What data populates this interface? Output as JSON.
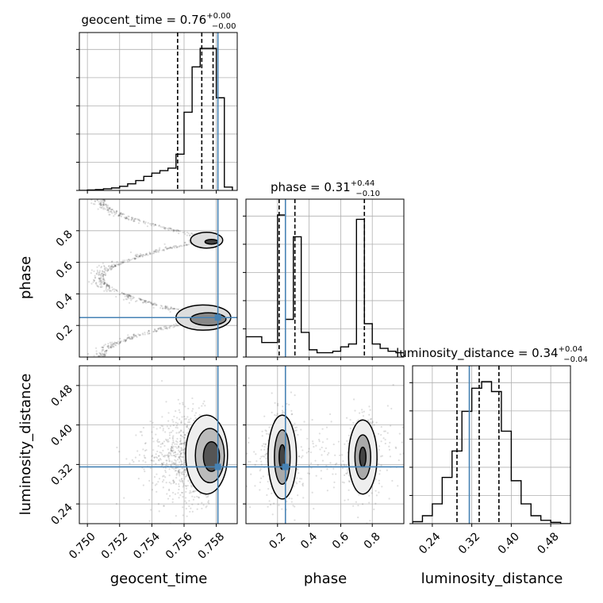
{
  "chart_data": {
    "type": "corner",
    "params": [
      "geocent_time",
      "phase",
      "luminosity_distance"
    ],
    "axis_labels": [
      "geocent_time",
      "phase",
      "luminosity_distance"
    ],
    "titles": [
      {
        "param": "geocent_time",
        "value": "0.76",
        "plus": "+0.00",
        "minus": "−0.00"
      },
      {
        "param": "phase",
        "value": "0.31",
        "plus": "+0.44",
        "minus": "−0.10"
      },
      {
        "param": "luminosity_distance",
        "value": "0.34",
        "plus": "+0.04",
        "minus": "−0.04"
      }
    ],
    "ranges": {
      "geocent_time": [
        0.7495,
        0.7593
      ],
      "phase": [
        0.0,
        1.0
      ],
      "luminosity_distance": [
        0.2,
        0.52
      ]
    },
    "ticks": {
      "geocent_time": [
        "0.750",
        "0.752",
        "0.754",
        "0.756",
        "0.758"
      ],
      "phase": [
        "0.2",
        "0.4",
        "0.6",
        "0.8"
      ],
      "luminosity_distance": [
        "0.24",
        "0.32",
        "0.40",
        "0.48"
      ]
    },
    "truths": {
      "geocent_time": 0.7581,
      "phase": 0.25,
      "luminosity_distance": 0.315
    },
    "quantiles": {
      "geocent_time": [
        0.7556,
        0.7571,
        0.7578
      ],
      "phase": [
        0.21,
        0.31,
        0.75
      ],
      "luminosity_distance": [
        0.29,
        0.335,
        0.375
      ]
    },
    "histograms": {
      "geocent_time": {
        "edges": [
          0.7495,
          0.75,
          0.7505,
          0.751,
          0.7515,
          0.752,
          0.7525,
          0.753,
          0.7535,
          0.754,
          0.7545,
          0.755,
          0.7555,
          0.756,
          0.7565,
          0.757,
          0.7575,
          0.758,
          0.7585,
          0.759
        ],
        "counts": [
          0,
          1,
          2,
          4,
          6,
          10,
          16,
          24,
          34,
          42,
          48,
          54,
          88,
          190,
          300,
          345,
          345,
          225,
          8
        ]
      },
      "phase": {
        "edges": [
          0.0,
          0.05,
          0.1,
          0.15,
          0.2,
          0.25,
          0.3,
          0.35,
          0.4,
          0.45,
          0.5,
          0.55,
          0.6,
          0.65,
          0.7,
          0.75,
          0.8,
          0.85,
          0.9,
          0.95,
          1.0
        ],
        "counts": [
          70,
          70,
          50,
          50,
          490,
          130,
          415,
          85,
          25,
          15,
          15,
          20,
          35,
          45,
          475,
          115,
          45,
          30,
          20,
          15
        ]
      },
      "luminosity_distance": {
        "edges": [
          0.2,
          0.22,
          0.24,
          0.26,
          0.28,
          0.3,
          0.32,
          0.34,
          0.36,
          0.38,
          0.4,
          0.42,
          0.44,
          0.46,
          0.48,
          0.5,
          0.52
        ],
        "counts": [
          3,
          12,
          30,
          70,
          110,
          170,
          205,
          215,
          200,
          140,
          65,
          30,
          12,
          5,
          2,
          0
        ]
      }
    },
    "grid": true,
    "truth_color": "#4682b4",
    "line_color": "#000000"
  }
}
